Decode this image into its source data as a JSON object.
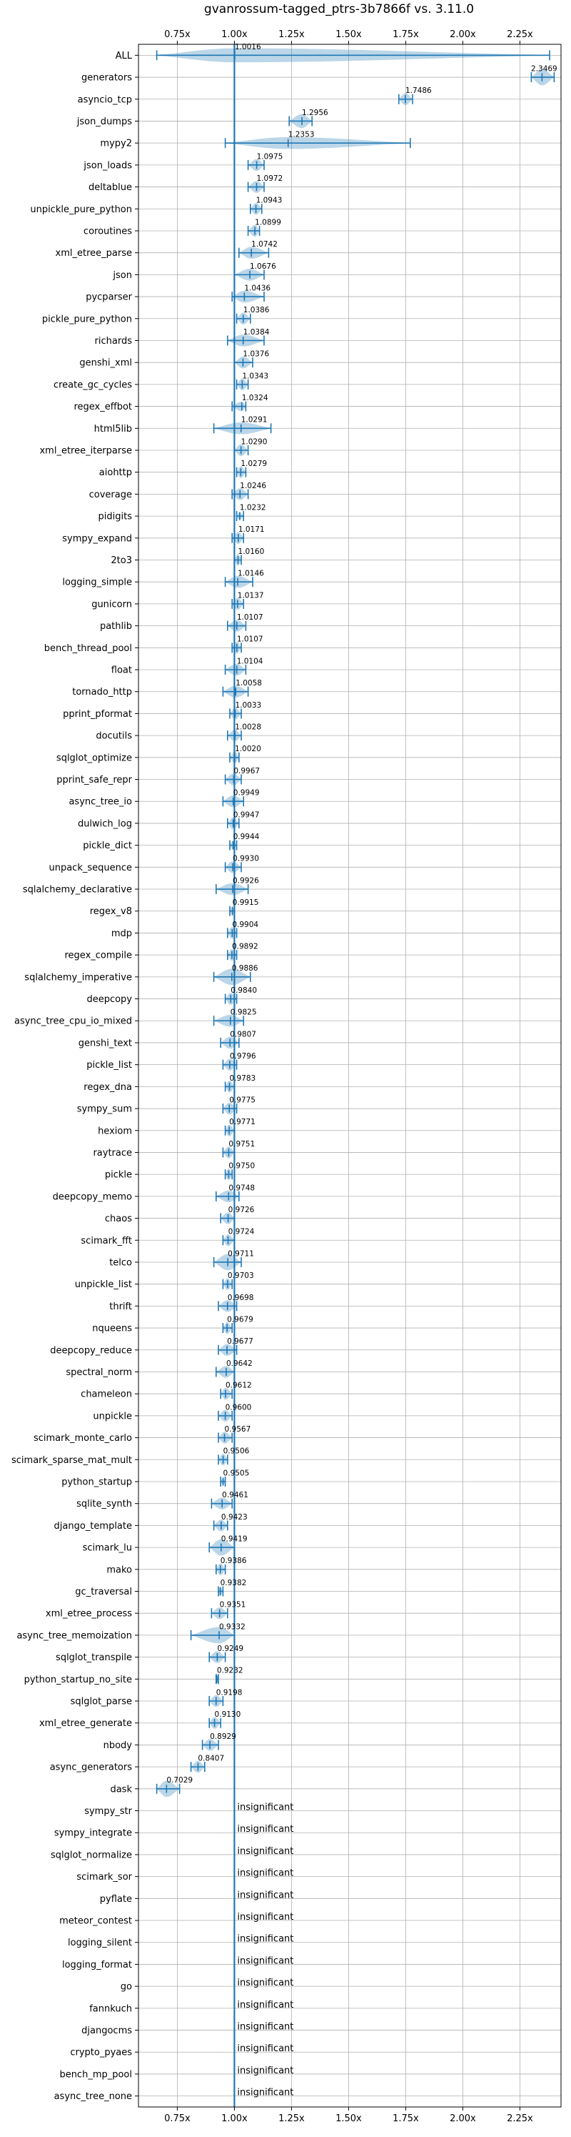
{
  "chart_data": {
    "type": "violin",
    "title": "gvanrossum-tagged_ptrs-3b7866f vs. 3.11.0",
    "xlim": [
      0.58,
      2.43
    ],
    "xticks": [
      0.75,
      1.0,
      1.25,
      1.5,
      1.75,
      2.0,
      2.25
    ],
    "xtick_labels": [
      "0.75x",
      "1.00x",
      "1.25x",
      "1.50x",
      "1.75x",
      "2.00x",
      "2.25x"
    ],
    "reference_x": 1.0,
    "grid": true,
    "insignificant_label": "insignificant",
    "rows": [
      {
        "name": "ALL",
        "value": 1.0016,
        "label": "1.0016",
        "min": 0.66,
        "max": 2.38,
        "w": 0.3
      },
      {
        "name": "generators",
        "value": 2.3469,
        "label": "2.3469",
        "min": 2.3,
        "max": 2.4,
        "w": 0.35
      },
      {
        "name": "asyncio_tcp",
        "value": 1.7486,
        "label": "1.7486",
        "min": 1.72,
        "max": 1.78,
        "w": 0.25
      },
      {
        "name": "json_dumps",
        "value": 1.2956,
        "label": "1.2956",
        "min": 1.24,
        "max": 1.34,
        "w": 0.3
      },
      {
        "name": "mypy2",
        "value": 1.2353,
        "label": "1.2353",
        "min": 0.96,
        "max": 1.77,
        "w": 0.25
      },
      {
        "name": "json_loads",
        "value": 1.0975,
        "label": "1.0975",
        "min": 1.06,
        "max": 1.13,
        "w": 0.25
      },
      {
        "name": "deltablue",
        "value": 1.0972,
        "label": "1.0972",
        "min": 1.06,
        "max": 1.13,
        "w": 0.25
      },
      {
        "name": "unpickle_pure_python",
        "value": 1.0943,
        "label": "1.0943",
        "min": 1.07,
        "max": 1.12,
        "w": 0.25
      },
      {
        "name": "coroutines",
        "value": 1.0899,
        "label": "1.0899",
        "min": 1.06,
        "max": 1.11,
        "w": 0.25
      },
      {
        "name": "xml_etree_parse",
        "value": 1.0742,
        "label": "1.0742",
        "min": 1.02,
        "max": 1.15,
        "w": 0.25
      },
      {
        "name": "json",
        "value": 1.0676,
        "label": "1.0676",
        "min": 1.0,
        "max": 1.13,
        "w": 0.25
      },
      {
        "name": "pycparser",
        "value": 1.0436,
        "label": "1.0436",
        "min": 0.99,
        "max": 1.13,
        "w": 0.25
      },
      {
        "name": "pickle_pure_python",
        "value": 1.0386,
        "label": "1.0386",
        "min": 1.01,
        "max": 1.07,
        "w": 0.25
      },
      {
        "name": "richards",
        "value": 1.0384,
        "label": "1.0384",
        "min": 0.97,
        "max": 1.13,
        "w": 0.25
      },
      {
        "name": "genshi_xml",
        "value": 1.0376,
        "label": "1.0376",
        "min": 1.0,
        "max": 1.08,
        "w": 0.25
      },
      {
        "name": "create_gc_cycles",
        "value": 1.0343,
        "label": "1.0343",
        "min": 1.01,
        "max": 1.06,
        "w": 0.25
      },
      {
        "name": "regex_effbot",
        "value": 1.0324,
        "label": "1.0324",
        "min": 0.99,
        "max": 1.05,
        "w": 0.2
      },
      {
        "name": "html5lib",
        "value": 1.0291,
        "label": "1.0291",
        "min": 0.91,
        "max": 1.16,
        "w": 0.25
      },
      {
        "name": "xml_etree_iterparse",
        "value": 1.029,
        "label": "1.0290",
        "min": 1.0,
        "max": 1.06,
        "w": 0.25
      },
      {
        "name": "aiohttp",
        "value": 1.0279,
        "label": "1.0279",
        "min": 1.01,
        "max": 1.05,
        "w": 0.25
      },
      {
        "name": "coverage",
        "value": 1.0246,
        "label": "1.0246",
        "min": 0.99,
        "max": 1.06,
        "w": 0.25
      },
      {
        "name": "pidigits",
        "value": 1.0232,
        "label": "1.0232",
        "min": 1.01,
        "max": 1.04,
        "w": 0.15
      },
      {
        "name": "sympy_expand",
        "value": 1.0171,
        "label": "1.0171",
        "min": 0.99,
        "max": 1.04,
        "w": 0.25
      },
      {
        "name": "2to3",
        "value": 1.016,
        "label": "1.0160",
        "min": 1.0,
        "max": 1.03,
        "w": 0.25
      },
      {
        "name": "logging_simple",
        "value": 1.0146,
        "label": "1.0146",
        "min": 0.96,
        "max": 1.08,
        "w": 0.25
      },
      {
        "name": "gunicorn",
        "value": 1.0137,
        "label": "1.0137",
        "min": 0.99,
        "max": 1.04,
        "w": 0.25
      },
      {
        "name": "pathlib",
        "value": 1.0107,
        "label": "1.0107",
        "min": 0.97,
        "max": 1.05,
        "w": 0.25
      },
      {
        "name": "bench_thread_pool",
        "value": 1.0107,
        "label": "1.0107",
        "min": 0.99,
        "max": 1.03,
        "w": 0.25
      },
      {
        "name": "float",
        "value": 1.0104,
        "label": "1.0104",
        "min": 0.96,
        "max": 1.05,
        "w": 0.25
      },
      {
        "name": "tornado_http",
        "value": 1.0058,
        "label": "1.0058",
        "min": 0.95,
        "max": 1.06,
        "w": 0.25
      },
      {
        "name": "pprint_pformat",
        "value": 1.0033,
        "label": "1.0033",
        "min": 0.98,
        "max": 1.03,
        "w": 0.25
      },
      {
        "name": "docutils",
        "value": 1.0028,
        "label": "1.0028",
        "min": 0.97,
        "max": 1.03,
        "w": 0.25
      },
      {
        "name": "sqlglot_optimize",
        "value": 1.002,
        "label": "1.0020",
        "min": 0.98,
        "max": 1.02,
        "w": 0.25
      },
      {
        "name": "pprint_safe_repr",
        "value": 0.9967,
        "label": "0.9967",
        "min": 0.96,
        "max": 1.03,
        "w": 0.25
      },
      {
        "name": "async_tree_io",
        "value": 0.9949,
        "label": "0.9949",
        "min": 0.95,
        "max": 1.04,
        "w": 0.25
      },
      {
        "name": "dulwich_log",
        "value": 0.9947,
        "label": "0.9947",
        "min": 0.97,
        "max": 1.02,
        "w": 0.25
      },
      {
        "name": "pickle_dict",
        "value": 0.9944,
        "label": "0.9944",
        "min": 0.98,
        "max": 1.01,
        "w": 0.2
      },
      {
        "name": "unpack_sequence",
        "value": 0.993,
        "label": "0.9930",
        "min": 0.96,
        "max": 1.03,
        "w": 0.25
      },
      {
        "name": "sqlalchemy_declarative",
        "value": 0.9926,
        "label": "0.9926",
        "min": 0.92,
        "max": 1.06,
        "w": 0.25
      },
      {
        "name": "regex_v8",
        "value": 0.9915,
        "label": "0.9915",
        "min": 0.98,
        "max": 1.0,
        "w": 0.2
      },
      {
        "name": "mdp",
        "value": 0.9904,
        "label": "0.9904",
        "min": 0.97,
        "max": 1.01,
        "w": 0.25
      },
      {
        "name": "regex_compile",
        "value": 0.9892,
        "label": "0.9892",
        "min": 0.97,
        "max": 1.01,
        "w": 0.25
      },
      {
        "name": "sqlalchemy_imperative",
        "value": 0.9886,
        "label": "0.9886",
        "min": 0.91,
        "max": 1.07,
        "w": 0.35
      },
      {
        "name": "deepcopy",
        "value": 0.984,
        "label": "0.9840",
        "min": 0.96,
        "max": 1.01,
        "w": 0.25
      },
      {
        "name": "async_tree_cpu_io_mixed",
        "value": 0.9825,
        "label": "0.9825",
        "min": 0.91,
        "max": 1.04,
        "w": 0.25
      },
      {
        "name": "genshi_text",
        "value": 0.9807,
        "label": "0.9807",
        "min": 0.94,
        "max": 1.02,
        "w": 0.25
      },
      {
        "name": "pickle_list",
        "value": 0.9796,
        "label": "0.9796",
        "min": 0.95,
        "max": 1.01,
        "w": 0.25
      },
      {
        "name": "regex_dna",
        "value": 0.9783,
        "label": "0.9783",
        "min": 0.96,
        "max": 1.0,
        "w": 0.25
      },
      {
        "name": "sympy_sum",
        "value": 0.9775,
        "label": "0.9775",
        "min": 0.95,
        "max": 1.01,
        "w": 0.25
      },
      {
        "name": "hexiom",
        "value": 0.9771,
        "label": "0.9771",
        "min": 0.96,
        "max": 1.0,
        "w": 0.25
      },
      {
        "name": "raytrace",
        "value": 0.9751,
        "label": "0.9751",
        "min": 0.95,
        "max": 1.0,
        "w": 0.25
      },
      {
        "name": "pickle",
        "value": 0.975,
        "label": "0.9750",
        "min": 0.96,
        "max": 0.99,
        "w": 0.25
      },
      {
        "name": "deepcopy_memo",
        "value": 0.9748,
        "label": "0.9748",
        "min": 0.92,
        "max": 1.02,
        "w": 0.25
      },
      {
        "name": "chaos",
        "value": 0.9726,
        "label": "0.9726",
        "min": 0.94,
        "max": 1.0,
        "w": 0.25
      },
      {
        "name": "scimark_fft",
        "value": 0.9724,
        "label": "0.9724",
        "min": 0.95,
        "max": 1.0,
        "w": 0.25
      },
      {
        "name": "telco",
        "value": 0.9711,
        "label": "0.9711",
        "min": 0.91,
        "max": 1.03,
        "w": 0.35
      },
      {
        "name": "unpickle_list",
        "value": 0.9703,
        "label": "0.9703",
        "min": 0.95,
        "max": 0.99,
        "w": 0.25
      },
      {
        "name": "thrift",
        "value": 0.9698,
        "label": "0.9698",
        "min": 0.93,
        "max": 1.01,
        "w": 0.25
      },
      {
        "name": "nqueens",
        "value": 0.9679,
        "label": "0.9679",
        "min": 0.95,
        "max": 0.99,
        "w": 0.25
      },
      {
        "name": "deepcopy_reduce",
        "value": 0.9677,
        "label": "0.9677",
        "min": 0.93,
        "max": 1.01,
        "w": 0.25
      },
      {
        "name": "spectral_norm",
        "value": 0.9642,
        "label": "0.9642",
        "min": 0.92,
        "max": 1.0,
        "w": 0.25
      },
      {
        "name": "chameleon",
        "value": 0.9612,
        "label": "0.9612",
        "min": 0.94,
        "max": 0.99,
        "w": 0.25
      },
      {
        "name": "unpickle",
        "value": 0.96,
        "label": "0.9600",
        "min": 0.93,
        "max": 0.99,
        "w": 0.25
      },
      {
        "name": "scimark_monte_carlo",
        "value": 0.9567,
        "label": "0.9567",
        "min": 0.93,
        "max": 0.99,
        "w": 0.25
      },
      {
        "name": "scimark_sparse_mat_mult",
        "value": 0.9506,
        "label": "0.9506",
        "min": 0.93,
        "max": 0.97,
        "w": 0.25
      },
      {
        "name": "python_startup",
        "value": 0.9505,
        "label": "0.9505",
        "min": 0.94,
        "max": 0.96,
        "w": 0.15
      },
      {
        "name": "sqlite_synth",
        "value": 0.9461,
        "label": "0.9461",
        "min": 0.9,
        "max": 0.99,
        "w": 0.25
      },
      {
        "name": "django_template",
        "value": 0.9423,
        "label": "0.9423",
        "min": 0.91,
        "max": 0.97,
        "w": 0.25
      },
      {
        "name": "scimark_lu",
        "value": 0.9419,
        "label": "0.9419",
        "min": 0.89,
        "max": 1.0,
        "w": 0.35
      },
      {
        "name": "mako",
        "value": 0.9386,
        "label": "0.9386",
        "min": 0.92,
        "max": 0.96,
        "w": 0.25
      },
      {
        "name": "gc_traversal",
        "value": 0.9382,
        "label": "0.9382",
        "min": 0.93,
        "max": 0.95,
        "w": 0.2
      },
      {
        "name": "xml_etree_process",
        "value": 0.9351,
        "label": "0.9351",
        "min": 0.9,
        "max": 0.97,
        "w": 0.25
      },
      {
        "name": "async_tree_memoization",
        "value": 0.9332,
        "label": "0.9332",
        "min": 0.81,
        "max": 1.0,
        "w": 0.35
      },
      {
        "name": "sqlglot_transpile",
        "value": 0.9249,
        "label": "0.9249",
        "min": 0.89,
        "max": 0.96,
        "w": 0.25
      },
      {
        "name": "python_startup_no_site",
        "value": 0.9232,
        "label": "0.9232",
        "min": 0.92,
        "max": 0.93,
        "w": 0.15
      },
      {
        "name": "sqlglot_parse",
        "value": 0.9198,
        "label": "0.9198",
        "min": 0.89,
        "max": 0.95,
        "w": 0.25
      },
      {
        "name": "xml_etree_generate",
        "value": 0.913,
        "label": "0.9130",
        "min": 0.89,
        "max": 0.94,
        "w": 0.25
      },
      {
        "name": "nbody",
        "value": 0.8929,
        "label": "0.8929",
        "min": 0.86,
        "max": 0.93,
        "w": 0.25
      },
      {
        "name": "async_generators",
        "value": 0.8407,
        "label": "0.8407",
        "min": 0.81,
        "max": 0.87,
        "w": 0.25
      },
      {
        "name": "dask",
        "value": 0.7029,
        "label": "0.7029",
        "min": 0.66,
        "max": 0.76,
        "w": 0.35
      },
      {
        "name": "sympy_str",
        "insignificant": true
      },
      {
        "name": "sympy_integrate",
        "insignificant": true
      },
      {
        "name": "sqlglot_normalize",
        "insignificant": true
      },
      {
        "name": "scimark_sor",
        "insignificant": true
      },
      {
        "name": "pyflate",
        "insignificant": true
      },
      {
        "name": "meteor_contest",
        "insignificant": true
      },
      {
        "name": "logging_silent",
        "insignificant": true
      },
      {
        "name": "logging_format",
        "insignificant": true
      },
      {
        "name": "go",
        "insignificant": true
      },
      {
        "name": "fannkuch",
        "insignificant": true
      },
      {
        "name": "djangocms",
        "insignificant": true
      },
      {
        "name": "crypto_pyaes",
        "insignificant": true
      },
      {
        "name": "bench_mp_pool",
        "insignificant": true
      },
      {
        "name": "async_tree_none",
        "insignificant": true
      }
    ]
  }
}
